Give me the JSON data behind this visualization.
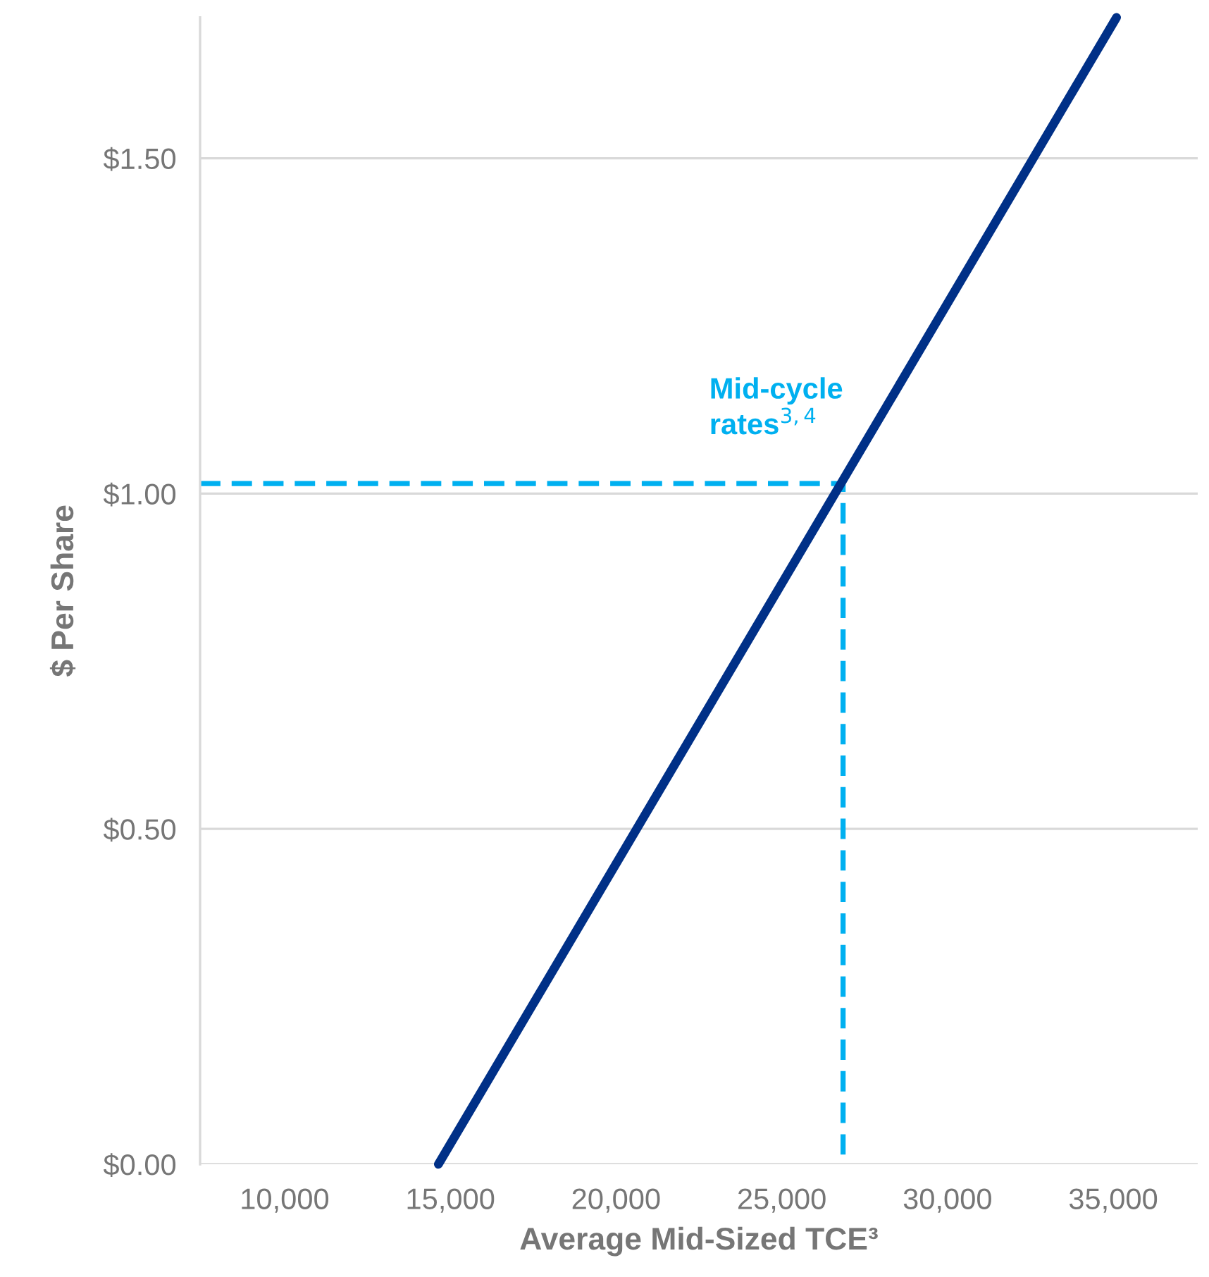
{
  "chart_data": {
    "type": "line",
    "xlabel": "Average Mid-Sized TCE³",
    "ylabel": "$ Per Share",
    "series": [
      {
        "color": "#003087",
        "x": [
          14640,
          35100
        ],
        "values": [
          0,
          1.71
        ],
        "line_style": "solid"
      },
      {
        "color": "#00b0f0",
        "x": [
          7450,
          26850,
          26850
        ],
        "values": [
          1.015,
          1.015,
          0
        ],
        "line_style": "dashed"
      }
    ],
    "xlim": [
      7450,
      37550
    ],
    "ylim": [
      0,
      1.71
    ],
    "xticks": [
      {
        "value": 10000,
        "label": "10,000"
      },
      {
        "value": 15000,
        "label": "15,000"
      },
      {
        "value": 20000,
        "label": "20,000"
      },
      {
        "value": 25000,
        "label": "25,000"
      },
      {
        "value": 30000,
        "label": "30,000"
      },
      {
        "value": 35000,
        "label": "35,000"
      }
    ],
    "yticks": [
      {
        "value": 0,
        "label": "$0.00"
      },
      {
        "value": 0.5,
        "label": "$0.50"
      },
      {
        "value": 1.0,
        "label": "$1.00"
      },
      {
        "value": 1.5,
        "label": "$1.50"
      }
    ],
    "grid": "y",
    "marker": "none",
    "legend": false,
    "annotations": [
      {
        "text": "Mid-cycle\nrates$^{3,4}$",
        "x": 26850,
        "y": 1.015
      }
    ]
  }
}
